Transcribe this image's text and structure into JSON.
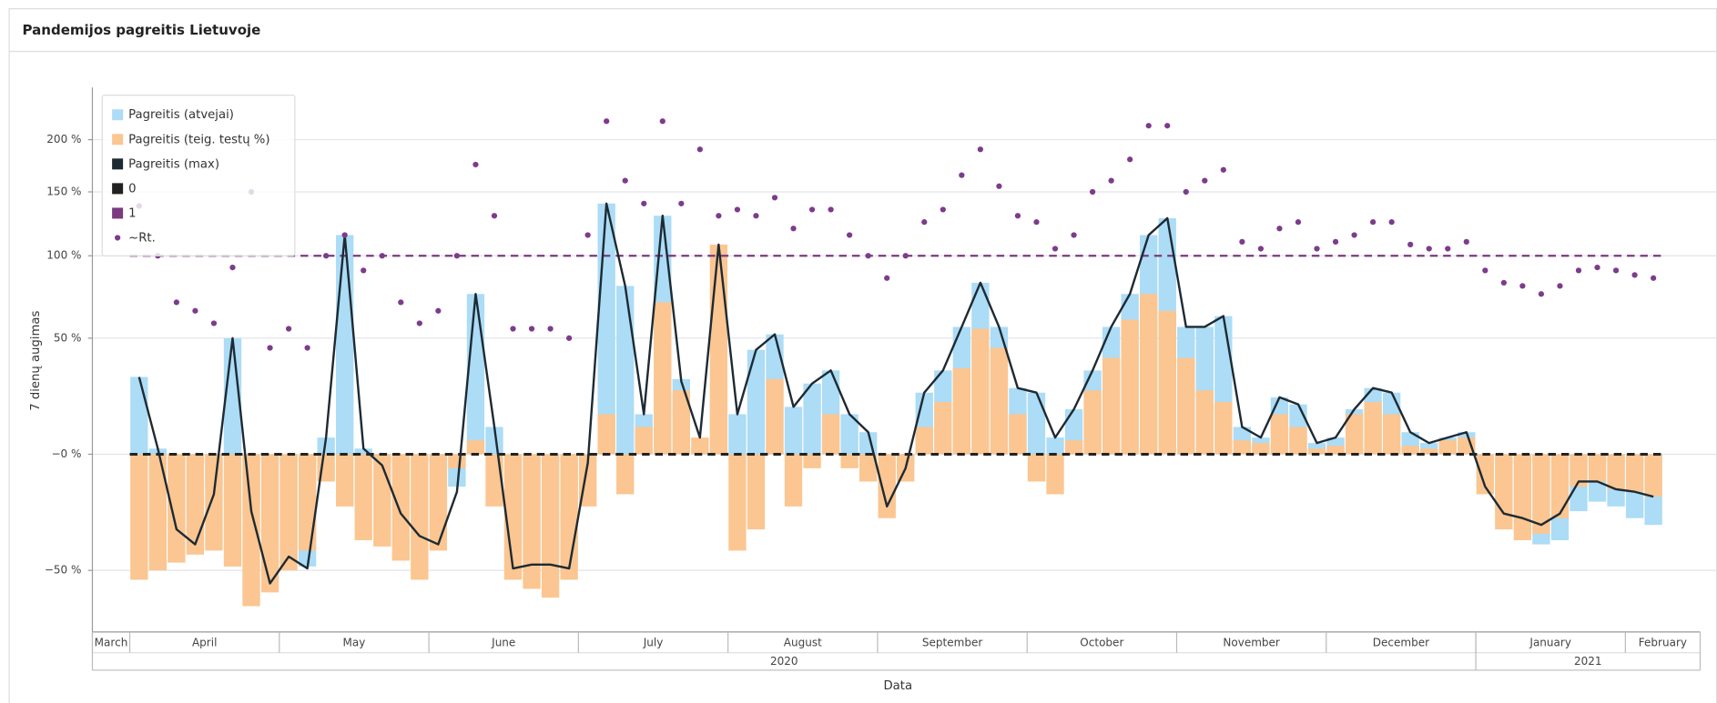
{
  "chart_data": {
    "type": "combo",
    "title": "Pandemijos pagreitis Lietuvoje",
    "y_label": "7 dienų augimas",
    "x_label": "Data",
    "yscale": "symlog",
    "ylim": [
      -86,
      260
    ],
    "yticks": [
      {
        "value": -50,
        "label": "−50 %"
      },
      {
        "value": 0,
        "label": "−0 %"
      },
      {
        "value": 50,
        "label": "50 %"
      },
      {
        "value": 100,
        "label": "100 %"
      },
      {
        "value": 150,
        "label": "150 %"
      },
      {
        "value": 200,
        "label": "200 %"
      }
    ],
    "grid": true,
    "legend": "top-left",
    "years": [
      {
        "label": "2020",
        "months": [
          "March",
          "April",
          "May",
          "June",
          "July",
          "August",
          "September",
          "October",
          "November",
          "December"
        ]
      },
      {
        "label": "2021",
        "months": [
          "January",
          "February"
        ]
      }
    ],
    "series": [
      {
        "name": "Pagreitis (atvejai)",
        "kind": "bar",
        "color": "#acdcf6",
        "values": [
          [
            null,
            null
          ],
          [
            31,
            2,
            -28,
            -39,
            -12,
            50,
            -20,
            -55
          ],
          [
            -45,
            -48,
            6,
            115,
            2,
            -3,
            -20,
            -30
          ],
          [
            -35,
            -12,
            75,
            10,
            -47,
            -45,
            -46,
            -47
          ],
          [
            -3,
            140,
            80,
            15,
            130,
            30,
            3,
            20
          ],
          [
            15,
            44,
            52,
            18,
            28,
            34,
            15,
            8
          ],
          [
            -20,
            -5,
            24,
            34,
            56,
            82,
            56,
            26
          ],
          [
            24,
            6,
            17,
            34,
            56,
            75,
            115,
            128
          ],
          [
            56,
            56,
            62,
            10,
            6,
            22,
            19,
            4
          ],
          [
            6,
            17,
            26,
            24,
            8,
            4,
            6,
            8
          ],
          [
            -12,
            -23,
            -28,
            -37,
            -35,
            -22,
            -18,
            -20
          ],
          [
            -25,
            -28,
            null,
            null
          ]
        ]
      },
      {
        "name": "Pagreitis (teig. testų %)",
        "kind": "bar",
        "color": "#fbc691",
        "values": [
          [
            null,
            null
          ],
          [
            -55,
            -50,
            -46,
            -42,
            -40,
            -48,
            -70,
            -62
          ],
          [
            -50,
            -40,
            -10,
            -20,
            -35,
            -38,
            -45,
            -55
          ],
          [
            -40,
            -5,
            5,
            -20,
            -55,
            -60,
            -65,
            -55
          ],
          [
            -20,
            15,
            -15,
            10,
            70,
            25,
            6,
            108
          ],
          [
            -40,
            -30,
            30,
            -20,
            -5,
            15,
            -5,
            -10
          ],
          [
            -25,
            -10,
            10,
            20,
            35,
            55,
            45,
            15
          ],
          [
            -10,
            -15,
            5,
            25,
            40,
            60,
            75,
            65
          ],
          [
            40,
            25,
            20,
            5,
            4,
            15,
            10,
            2
          ],
          [
            3,
            15,
            20,
            15,
            3,
            2,
            5,
            6
          ],
          [
            -15,
            -30,
            -35,
            -32,
            -25,
            -12,
            -10,
            -13
          ],
          [
            -14,
            -16,
            null,
            null
          ]
        ]
      },
      {
        "name": "Pagreitis (max)",
        "kind": "line",
        "color": "#1e2a33",
        "values": [
          [
            null,
            null
          ],
          [
            31,
            2,
            -30,
            -37,
            -15,
            50,
            -22,
            -57
          ],
          [
            -43,
            -49,
            6,
            115,
            2,
            -4,
            -23,
            -33
          ],
          [
            -37,
            -14,
            75,
            10,
            -49,
            -47,
            -47,
            -49
          ],
          [
            -3,
            140,
            80,
            15,
            130,
            29,
            6,
            108
          ],
          [
            15,
            44,
            52,
            18,
            28,
            34,
            15,
            8
          ],
          [
            -20,
            -5,
            24,
            34,
            56,
            82,
            56,
            26
          ],
          [
            24,
            6,
            17,
            34,
            56,
            75,
            115,
            128
          ],
          [
            56,
            56,
            62,
            10,
            6,
            22,
            19,
            4
          ],
          [
            6,
            17,
            26,
            24,
            8,
            4,
            6,
            8
          ],
          [
            -12,
            -23,
            -25,
            -28,
            -23,
            -10,
            -10,
            -13
          ],
          [
            -14,
            -16,
            null,
            null
          ]
        ]
      },
      {
        "name": "~Rt.",
        "kind": "scatter",
        "color": "#7d3c8b",
        "values": [
          [
            null,
            null
          ],
          [
            138,
            100,
            70,
            65,
            58,
            92,
            150,
            45
          ],
          [
            55,
            45,
            100,
            115,
            90,
            100,
            70,
            58
          ],
          [
            65,
            100,
            175,
            130,
            55,
            55,
            55,
            50
          ],
          [
            115,
            220,
            160,
            140,
            220,
            140,
            190,
            130
          ],
          [
            135,
            130,
            145,
            120,
            135,
            135,
            115,
            100
          ],
          [
            85,
            100,
            125,
            135,
            165,
            190,
            155,
            130
          ],
          [
            125,
            105,
            115,
            150,
            160,
            180,
            215,
            215
          ],
          [
            150,
            160,
            170,
            110,
            105,
            120,
            125,
            105
          ],
          [
            110,
            115,
            125,
            125,
            108,
            105,
            105,
            110
          ],
          [
            90,
            82,
            80,
            75,
            80,
            90,
            92,
            90
          ],
          [
            87,
            85,
            null,
            null
          ]
        ]
      }
    ],
    "reference_lines": [
      {
        "name": "0",
        "value": 0,
        "color": "#222222"
      },
      {
        "name": "1",
        "value": 100,
        "color": "#7b3a80"
      }
    ]
  }
}
